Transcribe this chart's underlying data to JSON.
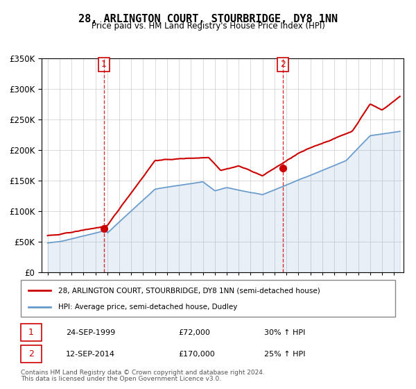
{
  "title": "28, ARLINGTON COURT, STOURBRIDGE, DY8 1NN",
  "subtitle": "Price paid vs. HM Land Registry's House Price Index (HPI)",
  "legend_line1": "28, ARLINGTON COURT, STOURBRIDGE, DY8 1NN (semi-detached house)",
  "legend_line2": "HPI: Average price, semi-detached house, Dudley",
  "transaction1_label": "1",
  "transaction1_date": "24-SEP-1999",
  "transaction1_price": "£72,000",
  "transaction1_hpi": "30% ↑ HPI",
  "transaction2_label": "2",
  "transaction2_date": "12-SEP-2014",
  "transaction2_price": "£170,000",
  "transaction2_hpi": "25% ↑ HPI",
  "footnote1": "Contains HM Land Registry data © Crown copyright and database right 2024.",
  "footnote2": "This data is licensed under the Open Government Licence v3.0.",
  "red_color": "#cc0000",
  "blue_color": "#6699cc",
  "marker_color": "#cc0000",
  "dashed_color": "#cc0000",
  "grid_color": "#cccccc",
  "box_color": "#cc0000",
  "ylim_max": 350000,
  "ylim_min": 0,
  "sale1_year": 1999.73,
  "sale1_price": 72000,
  "sale2_year": 2014.71,
  "sale2_price": 170000
}
